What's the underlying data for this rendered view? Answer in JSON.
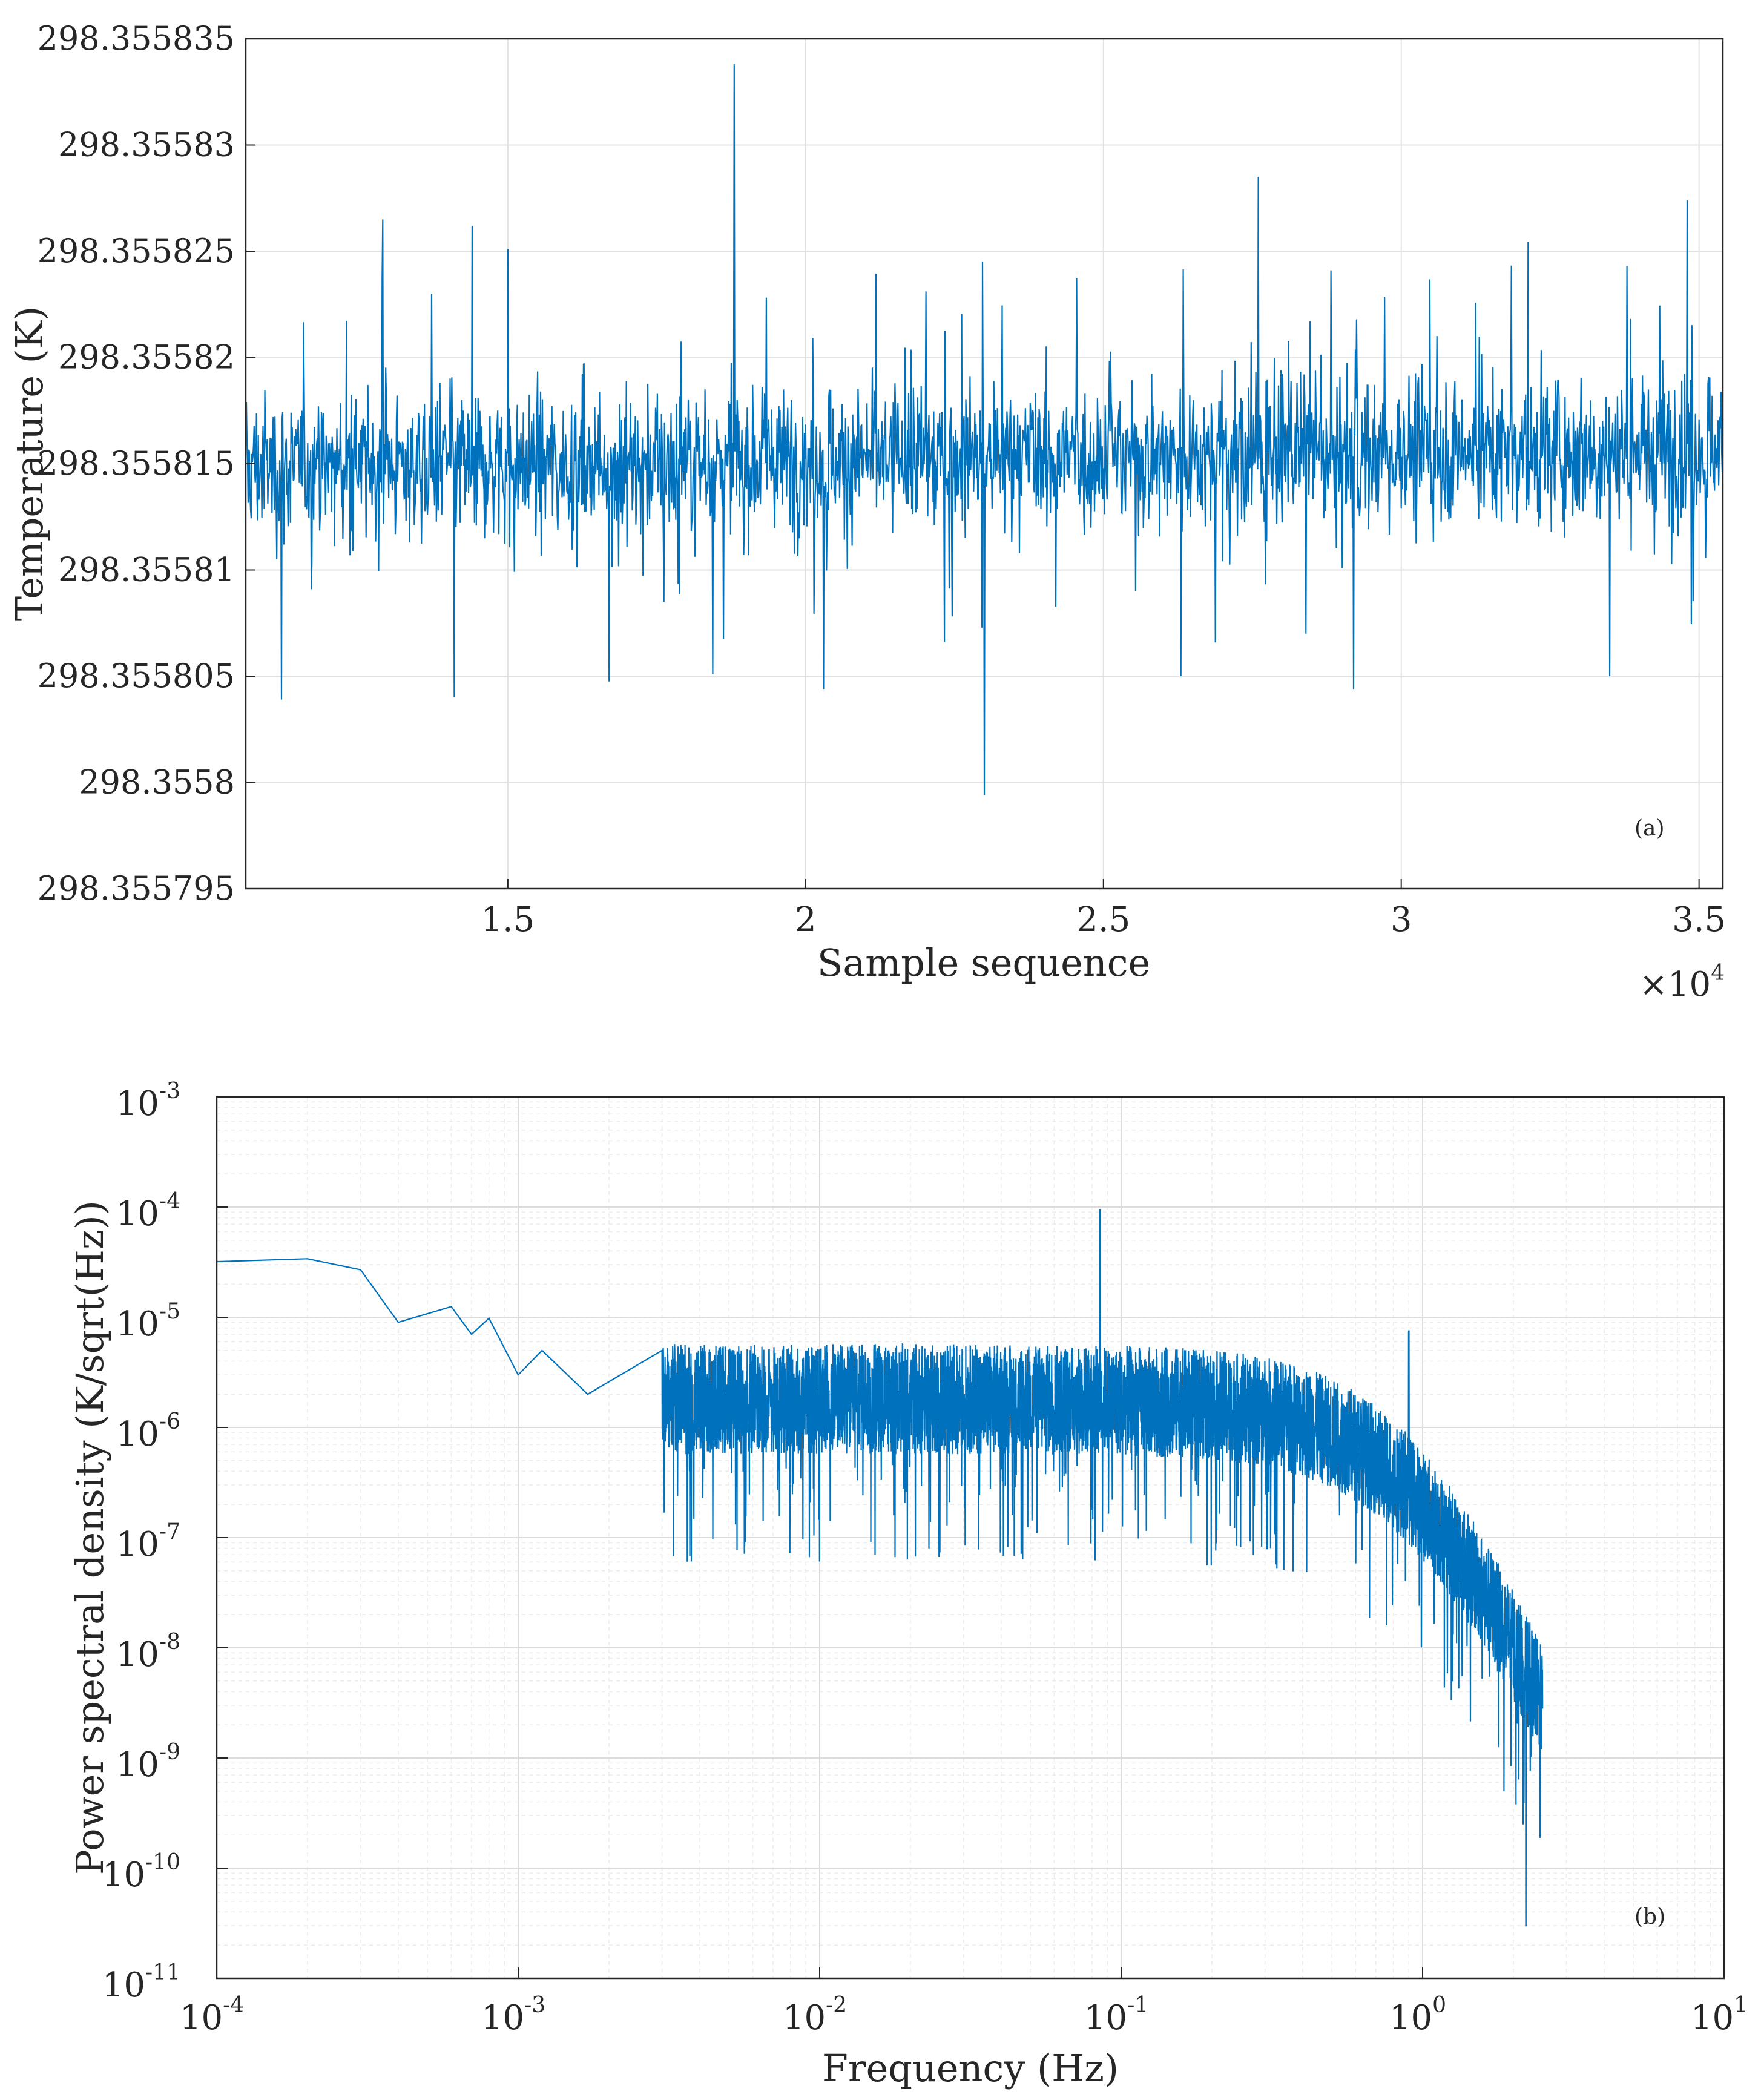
{
  "chart_data": [
    {
      "type": "line",
      "panel_label": "(a)",
      "xlabel": "Sample sequence",
      "ylabel": "Temperature (K)",
      "x_multiplier": "×10",
      "x_multiplier_exp": "4",
      "xlim": [
        10600,
        35400
      ],
      "ylim": [
        298.355795,
        298.355835
      ],
      "grid": true,
      "y_tick_labels": [
        "298.355835",
        "298.35583",
        "298.355825",
        "298.35582",
        "298.355815",
        "298.35581",
        "298.355805",
        "298.3558",
        "298.355795"
      ],
      "y_tick_values": [
        298.355835,
        298.35583,
        298.355825,
        298.35582,
        298.355815,
        298.35581,
        298.355805,
        298.3558,
        298.355795
      ],
      "x_tick_labels": [
        "1.5",
        "2",
        "2.5",
        "3",
        "3.5"
      ],
      "x_tick_values": [
        15000,
        20000,
        25000,
        30000,
        35000
      ],
      "series": [
        {
          "name": "temperature",
          "color": "#0072BD",
          "description_values": {
            "mean_start": 298.3558148,
            "mean_end": 298.3558158,
            "typical_band": [
              298.35581,
              298.35582
            ],
            "notable_spikes": [
              {
                "x": 12900,
                "y": 298.3558265
              },
              {
                "x": 14400,
                "y": 298.3558262
              },
              {
                "x": 15000,
                "y": 298.3558251
              },
              {
                "x": 18800,
                "y": 298.3558338
              },
              {
                "x": 27600,
                "y": 298.3558285
              },
              {
                "x": 34800,
                "y": 298.3558274
              }
            ],
            "notable_dips": [
              {
                "x": 11200,
                "y": 298.3558039
              },
              {
                "x": 14100,
                "y": 298.355804
              },
              {
                "x": 20300,
                "y": 298.3558044
              },
              {
                "x": 23000,
                "y": 298.3557994
              },
              {
                "x": 26300,
                "y": 298.355805
              },
              {
                "x": 29200,
                "y": 298.3558044
              },
              {
                "x": 33500,
                "y": 298.355805
              }
            ]
          }
        }
      ]
    },
    {
      "type": "line",
      "scale": "loglog",
      "panel_label": "(b)",
      "xlabel": "Frequency (Hz)",
      "ylabel": "Power spectral density (K/sqrt(Hz))",
      "xlim": [
        0.0001,
        10
      ],
      "ylim": [
        1e-11,
        0.001
      ],
      "grid": true,
      "minor_grid": true,
      "x_tick_exponents": [
        "-4",
        "-3",
        "-2",
        "-1",
        "0",
        "1"
      ],
      "y_tick_exponents": [
        "-3",
        "-4",
        "-5",
        "-6",
        "-7",
        "-8",
        "-9",
        "-10",
        "-11"
      ],
      "tick_base": "10",
      "series": [
        {
          "name": "psd",
          "color": "#0072BD",
          "low_freq_points": [
            {
              "f": 0.0001,
              "psd": 3.2e-05
            },
            {
              "f": 0.0002,
              "psd": 3.4e-05
            },
            {
              "f": 0.0003,
              "psd": 2.7e-05
            },
            {
              "f": 0.0004,
              "psd": 9e-06
            },
            {
              "f": 0.0006,
              "psd": 1.25e-05
            },
            {
              "f": 0.0007,
              "psd": 7e-06
            },
            {
              "f": 0.0008,
              "psd": 9.8e-06
            },
            {
              "f": 0.001,
              "psd": 3e-06
            },
            {
              "f": 0.0012,
              "psd": 5e-06
            },
            {
              "f": 0.0017,
              "psd": 2e-06
            },
            {
              "f": 0.003,
              "psd": 5e-06
            }
          ],
          "plateau_level": 3e-06,
          "plateau_range_hz": [
            0.004,
            0.6
          ],
          "spike": {
            "f": 0.085,
            "psd": 9.5e-05
          },
          "spike2": {
            "f": 0.9,
            "psd": 7.5e-06
          },
          "rolloff_to": {
            "f": 2.5,
            "psd": 1.2e-09
          },
          "min_point": {
            "f": 2.2,
            "psd": 3e-11
          }
        }
      ]
    }
  ]
}
